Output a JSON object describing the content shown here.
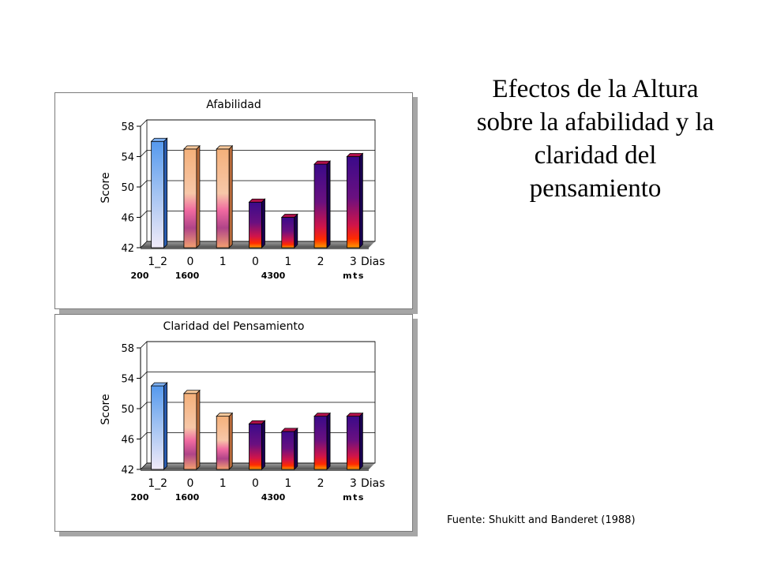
{
  "slide": {
    "title_lines": [
      "Efectos de la Altura",
      "sobre la afabilidad y la",
      "claridad del",
      "pensamiento"
    ],
    "source": "Fuente: Shukitt and Banderet (1988)"
  },
  "chart_data": [
    {
      "type": "bar",
      "title": "Afabilidad",
      "ylabel": "Score",
      "xlabel": "Dias",
      "ylim": [
        42,
        58
      ],
      "yticks": [
        42,
        46,
        50,
        54,
        58
      ],
      "categories": [
        "1_2",
        "0",
        "1",
        "0",
        "1",
        "2",
        "3"
      ],
      "values": [
        56,
        55,
        55,
        48,
        46,
        53,
        54
      ],
      "group_labels": [
        "200",
        "1600",
        "4300",
        "mts"
      ],
      "grid": true
    },
    {
      "type": "bar",
      "title": "Claridad del Pensamiento",
      "ylabel": "Score",
      "xlabel": "Dias",
      "ylim": [
        42,
        58
      ],
      "yticks": [
        42,
        46,
        50,
        54,
        58
      ],
      "categories": [
        "1_2",
        "0",
        "1",
        "0",
        "1",
        "2",
        "3"
      ],
      "values": [
        53,
        52,
        49,
        48,
        47,
        49,
        49
      ],
      "group_labels": [
        "200",
        "1600",
        "4300",
        "mts"
      ],
      "grid": true
    }
  ],
  "colors": {
    "bar_blue_top": "#5599ee",
    "bar_blue_bottom": "#f0eaf8",
    "bar_peach_top": "#f4b07a",
    "bar_pink_mid": "#f06aa0",
    "bar_purple_top": "#3a0a8a",
    "bar_red": "#ff2a00",
    "bar_orange": "#ff9900",
    "floor_top": "#a0a0a0",
    "floor_dark": "#505050"
  }
}
